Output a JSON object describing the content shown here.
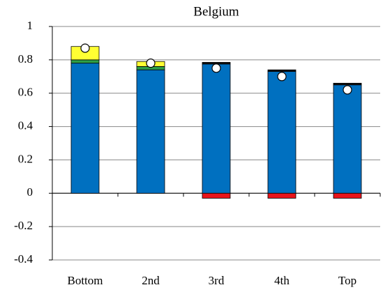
{
  "chart_data": {
    "type": "bar",
    "stacked": true,
    "title": "Belgium",
    "categories": [
      "Bottom",
      "2nd",
      "3rd",
      "4th",
      "Top"
    ],
    "series": [
      {
        "color": "#0070c0",
        "values": [
          0.78,
          0.74,
          0.775,
          0.73,
          0.65
        ]
      },
      {
        "color": "#2e9e47",
        "values": [
          0.02,
          0.02,
          0,
          0,
          0
        ]
      },
      {
        "color": "#ffff33",
        "values": [
          0.08,
          0.03,
          0,
          0,
          0
        ]
      },
      {
        "color": "#111111",
        "values": [
          0,
          0,
          0.01,
          0.01,
          0.01
        ]
      },
      {
        "color": "#e8141b",
        "values": [
          0,
          0,
          -0.03,
          -0.03,
          -0.03
        ]
      }
    ],
    "markers": {
      "color": "#ffffff",
      "values": [
        0.87,
        0.78,
        0.75,
        0.7,
        0.62
      ]
    },
    "ylim": [
      -0.4,
      1
    ],
    "yticks": [
      -0.4,
      -0.2,
      0,
      0.2,
      0.4,
      0.6,
      0.8,
      1
    ],
    "grid": true
  }
}
